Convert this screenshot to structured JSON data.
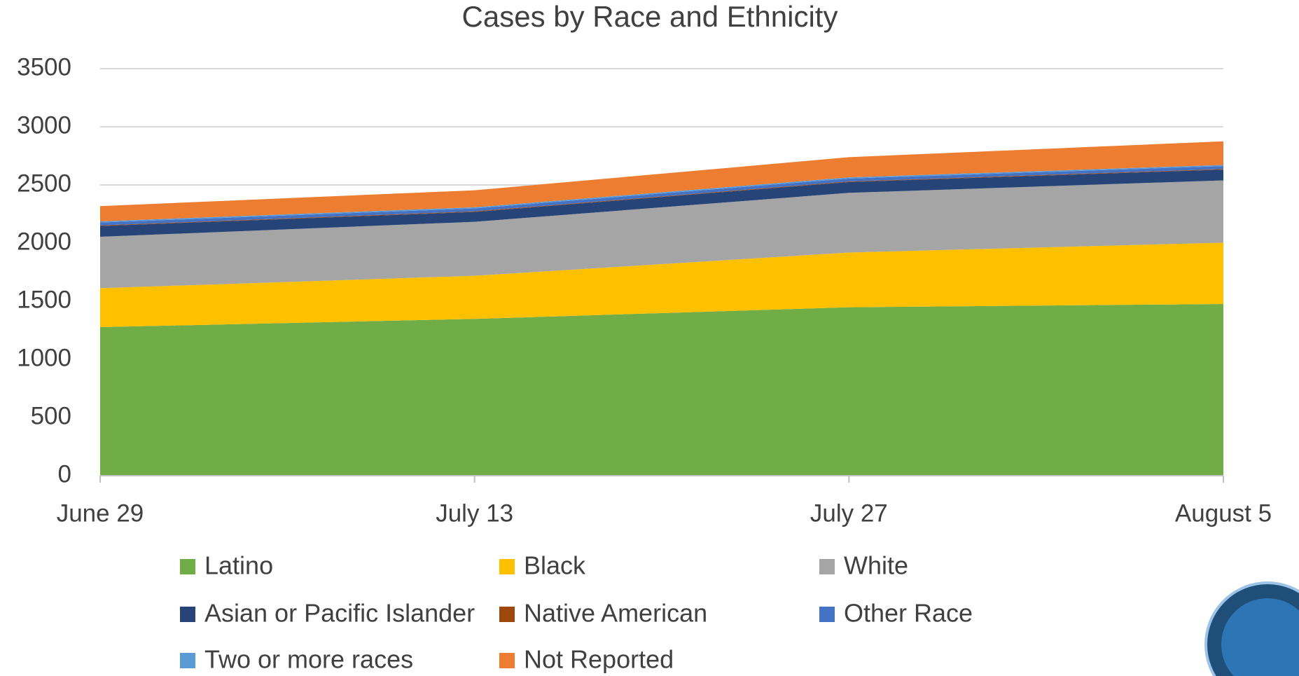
{
  "chart_data": {
    "type": "stacked_area",
    "title": "Cases by Race and Ethnicity",
    "categories": [
      "June 29",
      "July 13",
      "July 27",
      "August 5"
    ],
    "series": [
      {
        "name": "Latino",
        "color": "#70ad47",
        "values": [
          1277,
          1348,
          1448,
          1476
        ]
      },
      {
        "name": "Black",
        "color": "#ffc000",
        "values": [
          335,
          371,
          471,
          528
        ]
      },
      {
        "name": "White",
        "color": "#a5a5a5",
        "values": [
          442,
          464,
          513,
          535
        ]
      },
      {
        "name": "Asian or Pacific Islander",
        "color": "#264478",
        "values": [
          93,
          85,
          93,
          93
        ]
      },
      {
        "name": "Native American",
        "color": "#9e480e",
        "values": [
          5,
          5,
          5,
          5
        ]
      },
      {
        "name": "Other Race",
        "color": "#4472c4",
        "values": [
          25,
          25,
          25,
          25
        ]
      },
      {
        "name": "Two or more races",
        "color": "#5b9bd5",
        "values": [
          10,
          10,
          10,
          10
        ]
      },
      {
        "name": "Not Reported",
        "color": "#ed7d31",
        "values": [
          131,
          146,
          174,
          203
        ]
      }
    ],
    "ylim": [
      0,
      3500
    ],
    "yticks": [
      0,
      500,
      1000,
      1500,
      2000,
      2500,
      3000,
      3500
    ],
    "grid": true,
    "legend": "bottom"
  }
}
